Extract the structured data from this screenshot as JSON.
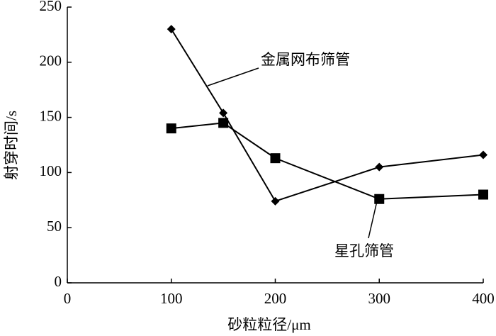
{
  "chart_data": {
    "type": "line",
    "x_label": "砂粒粒径/μm",
    "y_label": "射穿时间/s",
    "x": [
      100,
      150,
      200,
      300,
      400
    ],
    "series": [
      {
        "name": "金属网布筛管",
        "color": "#000000",
        "marker": "diamond",
        "values": [
          230,
          154,
          74,
          105,
          116
        ]
      },
      {
        "name": "星孔筛管",
        "color": "#000000",
        "marker": "square",
        "values": [
          140,
          145,
          113,
          76,
          80
        ]
      }
    ],
    "xlim": [
      0,
      400
    ],
    "xticks": [
      0,
      100,
      200,
      300,
      400
    ],
    "ylim": [
      0,
      250
    ],
    "yticks": [
      0,
      50,
      100,
      150,
      200,
      250
    ],
    "grid": false
  }
}
